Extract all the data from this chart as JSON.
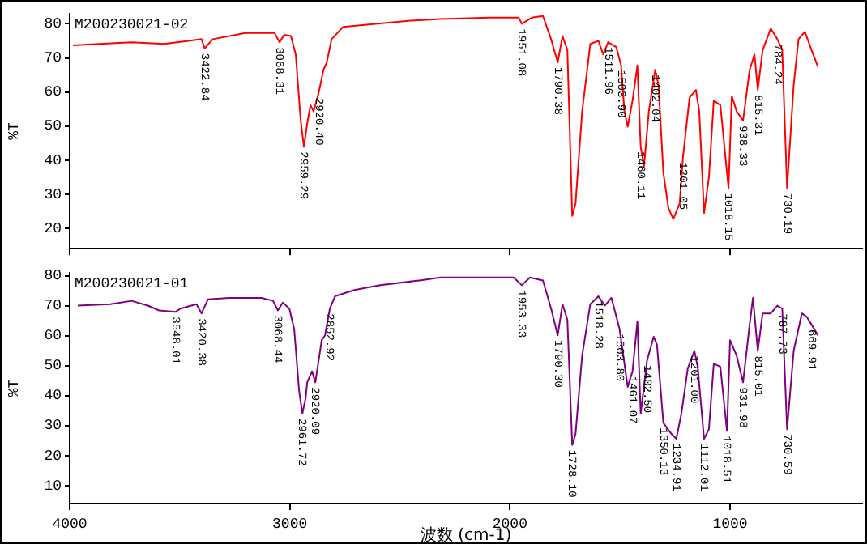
{
  "chart_data": [
    {
      "type": "line",
      "title": "M200230021-02",
      "ylabel": "%T",
      "xlim": [
        4000,
        400
      ],
      "xticks": [
        4000,
        3000,
        2000,
        1000
      ],
      "ylim": [
        14,
        83
      ],
      "yticks": [
        20,
        30,
        40,
        50,
        60,
        70,
        80
      ],
      "tick_labels": "y",
      "grid": false,
      "legend": false,
      "marker": "none",
      "line_style": "solid",
      "series": [
        {
          "color": "#ff0000",
          "x": [
            3985,
            3867,
            3719,
            3571,
            3461,
            3401,
            3387,
            3350,
            3202,
            3069,
            3047,
            3025,
            2995,
            2973,
            2951,
            2936,
            2921,
            2906,
            2892,
            2869,
            2847,
            2832,
            2810,
            2758,
            2611,
            2463,
            2315,
            2093,
            1960,
            1946,
            1901,
            1850,
            1813,
            1783,
            1761,
            1739,
            1717,
            1702,
            1672,
            1635,
            1598,
            1576,
            1554,
            1517,
            1495,
            1480,
            1465,
            1443,
            1421,
            1406,
            1391,
            1369,
            1340,
            1325,
            1303,
            1280,
            1258,
            1229,
            1214,
            1184,
            1155,
            1140,
            1118,
            1096,
            1074,
            1044,
            1007,
            992,
            970,
            941,
            911,
            889,
            874,
            852,
            815,
            785,
            763,
            741,
            711,
            689,
            660,
            630,
            601
          ],
          "values": [
            73.7,
            74.1,
            74.6,
            74.1,
            75.0,
            75.5,
            72.8,
            75.5,
            77.3,
            77.3,
            74.6,
            76.8,
            76.4,
            71.0,
            52.0,
            43.9,
            50.7,
            56.1,
            54.3,
            59.7,
            66.5,
            68.7,
            75.5,
            79.1,
            80.0,
            80.9,
            81.4,
            81.8,
            81.8,
            80.0,
            81.8,
            82.3,
            75.5,
            68.7,
            76.4,
            72.3,
            23.6,
            27.2,
            54.3,
            74.1,
            75.0,
            71.0,
            74.6,
            73.2,
            67.8,
            54.3,
            49.8,
            57.5,
            67.8,
            43.9,
            38.1,
            54.3,
            66.5,
            62.0,
            36.3,
            25.9,
            22.7,
            27.2,
            40.8,
            58.4,
            60.6,
            54.3,
            24.5,
            34.9,
            57.5,
            56.1,
            31.7,
            58.8,
            54.3,
            51.6,
            66.5,
            71.0,
            60.6,
            72.3,
            78.6,
            75.5,
            72.3,
            31.7,
            62.0,
            75.5,
            77.7,
            72.3,
            67.4
          ]
        }
      ],
      "annotations": [
        {
          "text": "3422.84",
          "x": 3387,
          "y": 72.8
        },
        {
          "text": "3068.31",
          "x": 3047,
          "y": 74.6
        },
        {
          "text": "2959.29",
          "x": 2936,
          "y": 43.9
        },
        {
          "text": "2920.40",
          "x": 2869,
          "y": 59.7
        },
        {
          "text": "1951.08",
          "x": 1946,
          "y": 80.0
        },
        {
          "text": "1790.38",
          "x": 1783,
          "y": 68.7
        },
        {
          "text": "1511.96",
          "x": 1554,
          "y": 74.6
        },
        {
          "text": "1503.90",
          "x": 1495,
          "y": 67.8
        },
        {
          "text": "1460.11",
          "x": 1406,
          "y": 43.9
        },
        {
          "text": "1402.04",
          "x": 1340,
          "y": 66.5
        },
        {
          "text": "1201.05",
          "x": 1214,
          "y": 40.8
        },
        {
          "text": "1018.15",
          "x": 1007,
          "y": 31.7
        },
        {
          "text": "938.33",
          "x": 941,
          "y": 51.6
        },
        {
          "text": "815.31",
          "x": 874,
          "y": 60.6
        },
        {
          "text": "784.24",
          "x": 785,
          "y": 75.5
        },
        {
          "text": "730.19",
          "x": 741,
          "y": 31.7
        }
      ]
    },
    {
      "type": "line",
      "title": "M200230021-01",
      "xlabel": "波数 (cm-1)",
      "ylabel": "%T",
      "xlim": [
        4000,
        400
      ],
      "xticks": [
        4000,
        3000,
        2000,
        1000
      ],
      "ylim": [
        4,
        81
      ],
      "yticks": [
        10,
        20,
        30,
        40,
        50,
        60,
        70,
        80
      ],
      "grid": false,
      "legend": false,
      "marker": "none",
      "line_style": "solid",
      "series": [
        {
          "color": "#800080",
          "x": [
            3963,
            3815,
            3719,
            3645,
            3594,
            3520,
            3497,
            3424,
            3401,
            3372,
            3276,
            3128,
            3076,
            3054,
            3032,
            3002,
            2980,
            2958,
            2943,
            2928,
            2921,
            2899,
            2884,
            2855,
            2840,
            2818,
            2795,
            2707,
            2589,
            2411,
            2315,
            1983,
            1946,
            1909,
            1850,
            1813,
            1783,
            1761,
            1739,
            1717,
            1702,
            1672,
            1635,
            1598,
            1569,
            1539,
            1502,
            1465,
            1443,
            1421,
            1406,
            1377,
            1347,
            1332,
            1303,
            1266,
            1244,
            1221,
            1192,
            1162,
            1147,
            1118,
            1096,
            1074,
            1044,
            1014,
            1000,
            970,
            941,
            911,
            896,
            874,
            852,
            815,
            785,
            763,
            741,
            711,
            674,
            652,
            630,
            601
          ],
          "values": [
            70.0,
            70.5,
            71.6,
            70.0,
            68.4,
            67.9,
            69.0,
            70.5,
            67.4,
            72.1,
            72.6,
            72.6,
            71.6,
            68.4,
            71.0,
            69.0,
            62.2,
            41.8,
            34.0,
            39.2,
            44.4,
            48.1,
            44.4,
            58.5,
            60.1,
            69.0,
            73.1,
            75.2,
            76.8,
            78.4,
            79.4,
            79.4,
            76.8,
            79.4,
            78.4,
            69.0,
            60.1,
            70.5,
            65.3,
            23.5,
            27.2,
            53.3,
            70.5,
            73.1,
            70.0,
            72.6,
            62.2,
            42.9,
            48.1,
            64.8,
            34.0,
            51.7,
            59.6,
            57.0,
            30.9,
            27.2,
            25.6,
            34.0,
            49.1,
            54.9,
            49.6,
            25.6,
            28.8,
            50.7,
            49.6,
            28.2,
            58.5,
            53.3,
            44.4,
            63.7,
            72.6,
            54.9,
            67.4,
            67.4,
            70.0,
            69.0,
            28.8,
            54.9,
            67.4,
            66.3,
            63.7,
            60.1
          ]
        }
      ],
      "annotations": [
        {
          "text": "3548.01",
          "x": 3520,
          "y": 67.9
        },
        {
          "text": "3420.38",
          "x": 3401,
          "y": 67.4
        },
        {
          "text": "3068.44",
          "x": 3054,
          "y": 68.4
        },
        {
          "text": "2961.72",
          "x": 2943,
          "y": 34.0
        },
        {
          "text": "2920.09",
          "x": 2884,
          "y": 44.4
        },
        {
          "text": "2852.92",
          "x": 2818,
          "y": 69.0
        },
        {
          "text": "1953.33",
          "x": 1946,
          "y": 76.8
        },
        {
          "text": "1790.30",
          "x": 1783,
          "y": 60.1
        },
        {
          "text": "1728.10",
          "x": 1717,
          "y": 23.5
        },
        {
          "text": "1518.28",
          "x": 1598,
          "y": 73.1
        },
        {
          "text": "1503.80",
          "x": 1502,
          "y": 62.2
        },
        {
          "text": "1461.07",
          "x": 1443,
          "y": 48.1
        },
        {
          "text": "1402.50",
          "x": 1377,
          "y": 51.7
        },
        {
          "text": "1350.13",
          "x": 1303,
          "y": 30.9
        },
        {
          "text": "1234.91",
          "x": 1244,
          "y": 25.6
        },
        {
          "text": "1201.00",
          "x": 1162,
          "y": 54.9
        },
        {
          "text": "1112.01",
          "x": 1118,
          "y": 25.6
        },
        {
          "text": "1018.51",
          "x": 1014,
          "y": 28.2
        },
        {
          "text": "931.98",
          "x": 941,
          "y": 44.4
        },
        {
          "text": "815.01",
          "x": 874,
          "y": 54.9
        },
        {
          "text": "787.73",
          "x": 763,
          "y": 69.0
        },
        {
          "text": "730.59",
          "x": 741,
          "y": 28.8
        },
        {
          "text": "669.91",
          "x": 630,
          "y": 63.7
        }
      ]
    }
  ]
}
